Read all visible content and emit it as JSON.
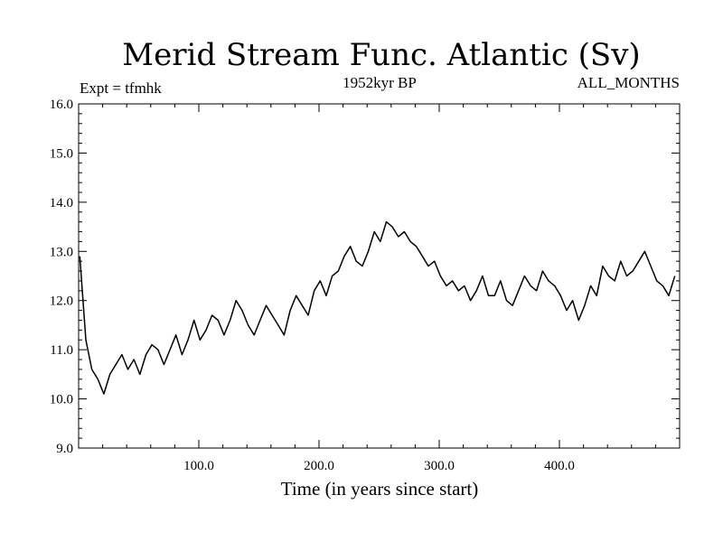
{
  "chart_data": {
    "type": "line",
    "title": "Merid Stream Func. Atlantic (Sv)",
    "subtitle": "1952kyr BP",
    "left_label": "Expt = tfmhk",
    "right_label": "ALL_MONTHS",
    "xlabel": "Time (in years since start)",
    "ylabel": "",
    "xlim": [
      0,
      500
    ],
    "ylim": [
      9.0,
      16.0
    ],
    "x_ticks": [
      100,
      200,
      300,
      400
    ],
    "x_tick_labels": [
      "100.0",
      "200.0",
      "300.0",
      "400.0"
    ],
    "y_ticks": [
      9,
      10,
      11,
      12,
      13,
      14,
      15,
      16
    ],
    "y_tick_labels": [
      "9.0",
      "10.0",
      "11.0",
      "12.0",
      "13.0",
      "14.0",
      "15.0",
      "16.0"
    ],
    "grid": false,
    "series": [
      {
        "name": "Merid Stream Func. Atlantic",
        "x_start": 1,
        "x_step": 5,
        "values": [
          12.9,
          11.2,
          10.6,
          10.4,
          10.1,
          10.5,
          10.7,
          10.9,
          10.6,
          10.8,
          10.5,
          10.9,
          11.1,
          11.0,
          10.7,
          11.0,
          11.3,
          10.9,
          11.2,
          11.6,
          11.2,
          11.4,
          11.7,
          11.6,
          11.3,
          11.6,
          12.0,
          11.8,
          11.5,
          11.3,
          11.6,
          11.9,
          11.7,
          11.5,
          11.3,
          11.8,
          12.1,
          11.9,
          11.7,
          12.2,
          12.4,
          12.1,
          12.5,
          12.6,
          12.9,
          13.1,
          12.8,
          12.7,
          13.0,
          13.4,
          13.2,
          13.6,
          13.5,
          13.3,
          13.4,
          13.2,
          13.1,
          12.9,
          12.7,
          12.8,
          12.5,
          12.3,
          12.4,
          12.2,
          12.3,
          12.0,
          12.2,
          12.5,
          12.1,
          12.1,
          12.4,
          12.0,
          11.9,
          12.2,
          12.5,
          12.3,
          12.2,
          12.6,
          12.4,
          12.3,
          12.1,
          11.8,
          12.0,
          11.6,
          11.9,
          12.3,
          12.1,
          12.7,
          12.5,
          12.4,
          12.8,
          12.5,
          12.6,
          12.8,
          13.0,
          12.7,
          12.4,
          12.3,
          12.1,
          12.5
        ]
      }
    ]
  }
}
